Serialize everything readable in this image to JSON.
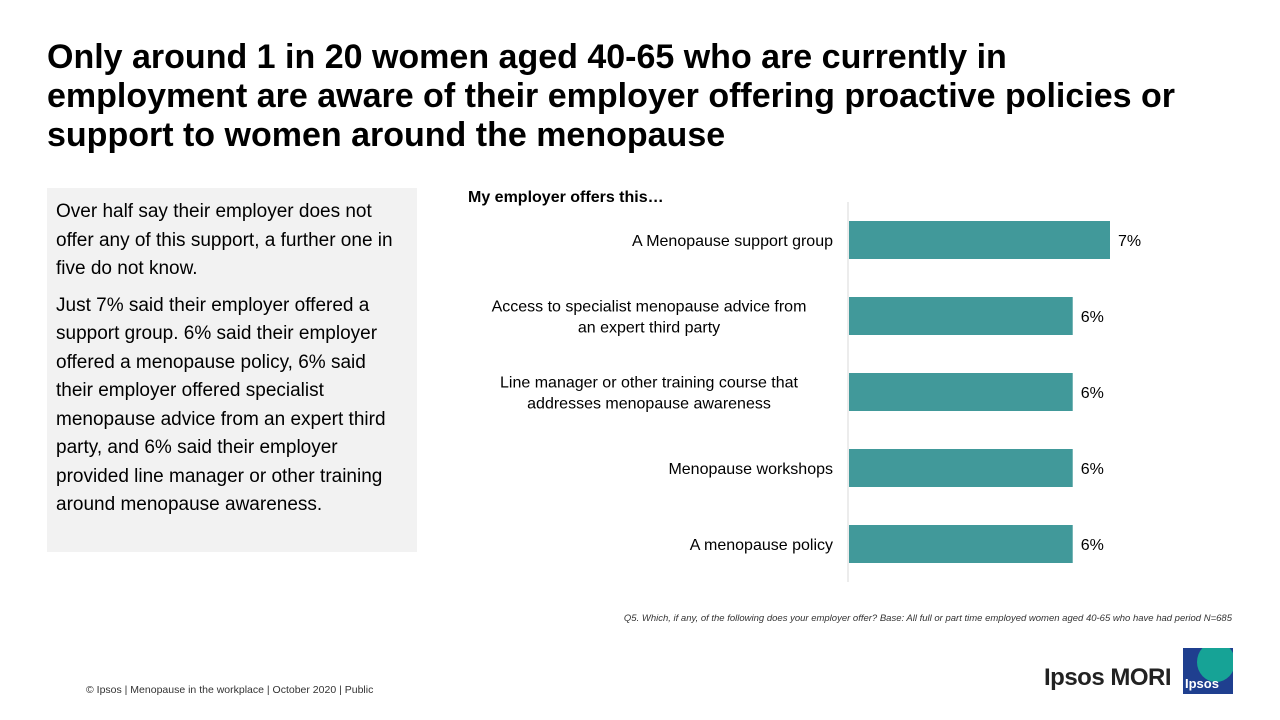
{
  "title": "Only around 1 in 20 women aged 40-65 who are currently in employment are aware of their employer offering proactive policies or support to women around the menopause",
  "summary": {
    "para1": "Over half say their employer does not offer any of this support, a further one in five do not know.",
    "para2": "Just 7% said their employer offered a support group. 6% said their employer offered a menopause policy, 6% said their employer offered specialist menopause advice from an expert third party, and 6% said their employer provided line manager or other training around menopause awareness."
  },
  "chart_data": {
    "type": "bar",
    "orientation": "horizontal",
    "title": "My employer offers this…",
    "categories": [
      [
        "A Menopause support group"
      ],
      [
        "Access to specialist menopause advice from",
        "an expert third party"
      ],
      [
        "Line manager or other training course that",
        "addresses menopause awareness"
      ],
      [
        "Menopause workshops"
      ],
      [
        "A menopause policy"
      ]
    ],
    "values": [
      7,
      6,
      6,
      6,
      6
    ],
    "value_labels": [
      "7%",
      "6%",
      "6%",
      "6%",
      "6%"
    ],
    "xlim": [
      0,
      7
    ],
    "bar_color": "#41999a",
    "grid": false
  },
  "footnote": "Q5. Which, if any, of the following does your employer offer? Base: All full or part time employed women aged 40-65 who have had period N=685",
  "footer": "© Ipsos | Menopause in the workplace | October 2020 | Public",
  "logo": {
    "text": "Ipsos MORI",
    "badge": "Ipsos"
  }
}
